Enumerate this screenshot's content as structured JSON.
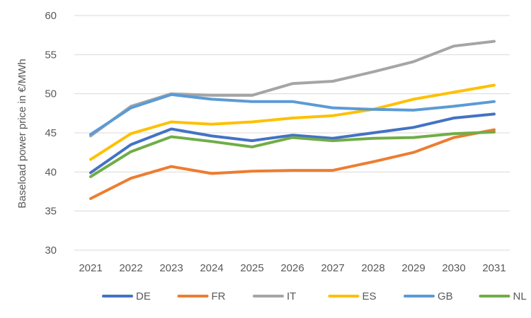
{
  "chart_data": {
    "type": "line",
    "title": "",
    "xlabel": "",
    "ylabel": "Baseload power price in €/MWh",
    "ylim": [
      30,
      60
    ],
    "yticks": [
      30,
      35,
      40,
      45,
      50,
      55,
      60
    ],
    "grid": true,
    "legend_position": "bottom",
    "categories": [
      "2021",
      "2022",
      "2023",
      "2024",
      "2025",
      "2026",
      "2027",
      "2028",
      "2029",
      "2030",
      "2031"
    ],
    "series": [
      {
        "name": "DE",
        "color": "#4472c4",
        "values": [
          39.9,
          43.5,
          45.5,
          44.6,
          44.0,
          44.7,
          44.3,
          45.0,
          45.7,
          46.9,
          47.4
        ]
      },
      {
        "name": "FR",
        "color": "#ed7d31",
        "values": [
          36.6,
          39.2,
          40.7,
          39.8,
          40.1,
          40.2,
          40.2,
          41.3,
          42.5,
          44.4,
          45.4
        ]
      },
      {
        "name": "IT",
        "color": "#a5a5a5",
        "values": [
          44.6,
          48.4,
          50.0,
          49.8,
          49.8,
          51.3,
          51.6,
          52.8,
          54.1,
          56.1,
          56.7
        ]
      },
      {
        "name": "ES",
        "color": "#ffc000",
        "values": [
          41.6,
          44.9,
          46.4,
          46.1,
          46.4,
          46.9,
          47.2,
          48.0,
          49.3,
          50.2,
          51.1
        ]
      },
      {
        "name": "GB",
        "color": "#5b9bd5",
        "values": [
          44.8,
          48.2,
          49.9,
          49.3,
          49.0,
          49.0,
          48.2,
          48.0,
          47.9,
          48.4,
          49.0
        ]
      },
      {
        "name": "NL",
        "color": "#70ad47",
        "values": [
          39.4,
          42.6,
          44.5,
          43.9,
          43.2,
          44.4,
          44.0,
          44.3,
          44.4,
          44.9,
          45.1
        ]
      }
    ]
  }
}
